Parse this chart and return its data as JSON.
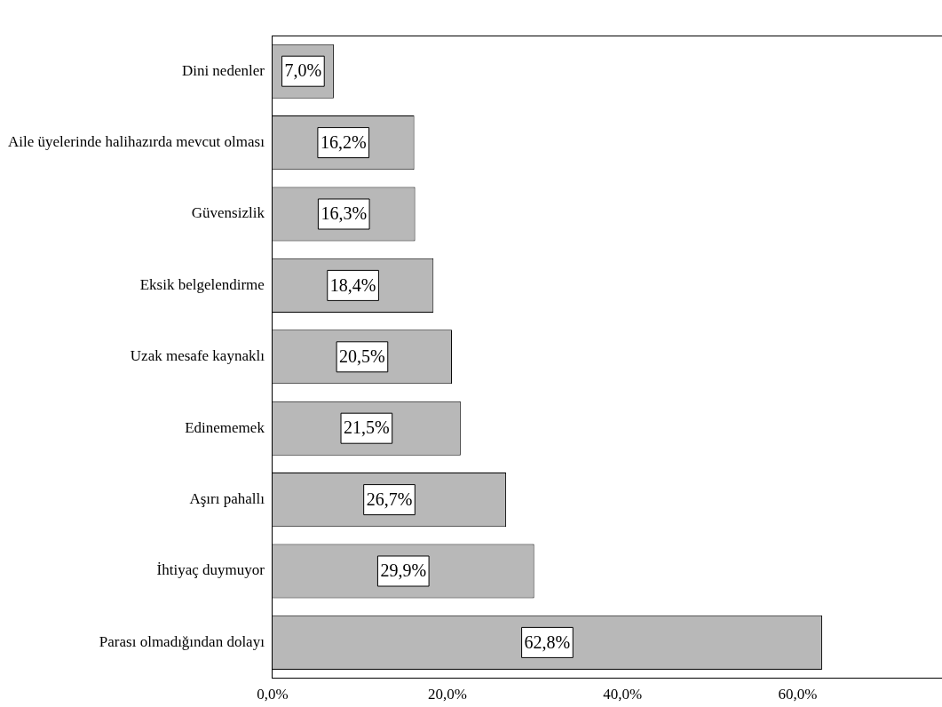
{
  "chart_data": {
    "type": "bar",
    "orientation": "horizontal",
    "categories": [
      "Dini nedenler",
      "Aile üyelerinde halihazırda mevcut olması",
      "Güvensizlik",
      "Eksik belgelendirme",
      "Uzak mesafe kaynaklı",
      "Edinememek",
      "Aşırı pahallı",
      "İhtiyaç duymuyor",
      "Parası olmadığından dolayı"
    ],
    "values": [
      7.0,
      16.2,
      16.3,
      18.4,
      20.5,
      21.5,
      26.7,
      29.9,
      62.8
    ],
    "value_labels": [
      "7,0%",
      "16,2%",
      "16,3%",
      "18,4%",
      "20,5%",
      "21,5%",
      "26,7%",
      "29,9%",
      "62,8%"
    ],
    "color": "#b8b8b8",
    "xlim": [
      0,
      76.5
    ],
    "xticks": [
      {
        "value": 0,
        "label": "0,0%"
      },
      {
        "value": 20,
        "label": "20,0%"
      },
      {
        "value": 40,
        "label": "40,0%"
      },
      {
        "value": 60,
        "label": "60,0%"
      }
    ],
    "grid": false,
    "legend": false
  }
}
